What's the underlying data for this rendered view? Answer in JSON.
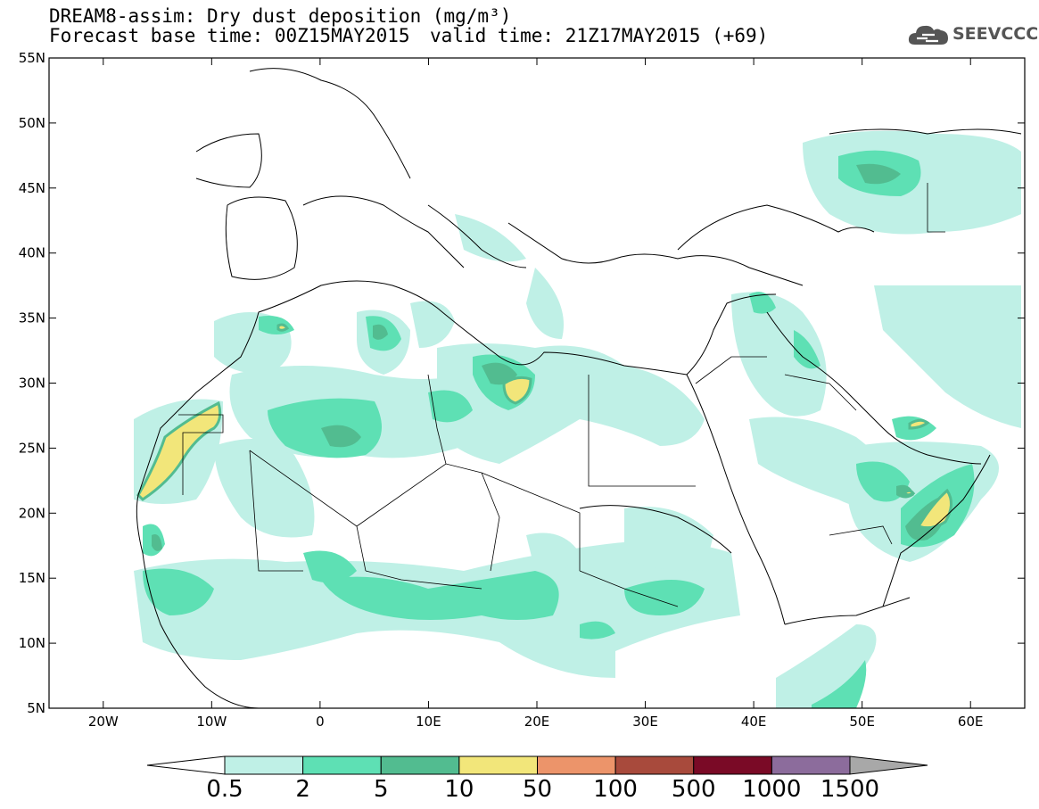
{
  "title": {
    "line1": "DREAM8-assim: Dry dust deposition (mg/m³)",
    "line2": "Forecast base time: 00Z15MAY2015",
    "line3": "valid time: 21Z17MAY2015 (+69)"
  },
  "logo": {
    "text": "SEEVCCC",
    "icon": "cloud-icon"
  },
  "map": {
    "lon_range": [
      -25,
      65
    ],
    "lat_range": [
      5,
      55
    ],
    "lat_ticks": [
      {
        "value": 55,
        "label": "55N"
      },
      {
        "value": 50,
        "label": "50N"
      },
      {
        "value": 45,
        "label": "45N"
      },
      {
        "value": 40,
        "label": "40N"
      },
      {
        "value": 35,
        "label": "35N"
      },
      {
        "value": 30,
        "label": "30N"
      },
      {
        "value": 25,
        "label": "25N"
      },
      {
        "value": 20,
        "label": "20N"
      },
      {
        "value": 15,
        "label": "15N"
      },
      {
        "value": 10,
        "label": "10N"
      },
      {
        "value": 5,
        "label": "5N"
      }
    ],
    "lon_ticks": [
      {
        "value": -20,
        "label": "20W"
      },
      {
        "value": -10,
        "label": "10W"
      },
      {
        "value": 0,
        "label": "0"
      },
      {
        "value": 10,
        "label": "10E"
      },
      {
        "value": 20,
        "label": "20E"
      },
      {
        "value": 30,
        "label": "30E"
      },
      {
        "value": 40,
        "label": "40E"
      },
      {
        "value": 50,
        "label": "50E"
      },
      {
        "value": 60,
        "label": "60E"
      }
    ]
  },
  "colorbar": {
    "labels": [
      "0.5",
      "2",
      "5",
      "10",
      "50",
      "100",
      "500",
      "1000",
      "1500"
    ],
    "colors": [
      "#bff0e6",
      "#5ee0b4",
      "#52bc90",
      "#f2e67a",
      "#ec946a",
      "#a84a3c",
      "#7a0a26",
      "#8c6c9c"
    ],
    "low_end_color": "#ffffff",
    "high_end_color": "#a8a8a8"
  },
  "colors": {
    "c05": "#bff0e6",
    "c2": "#5ee0b4",
    "c5": "#52bc90",
    "c10": "#f2e67a"
  }
}
